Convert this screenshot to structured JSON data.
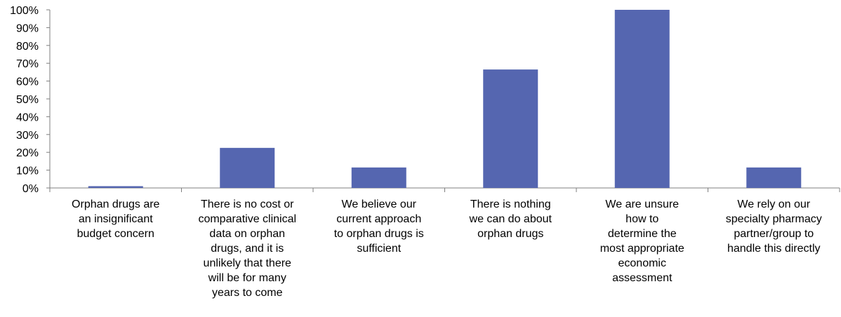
{
  "chart_data": {
    "type": "bar",
    "categories": [
      [
        "Orphan drugs are",
        "an insignificant",
        "budget concern"
      ],
      [
        "There is no cost or",
        "comparative clinical",
        "data on orphan",
        "drugs, and it is",
        "unlikely that there",
        "will be for many",
        "years to come"
      ],
      [
        "We believe our",
        "current approach",
        "to orphan drugs is",
        "sufficient"
      ],
      [
        "There is nothing",
        "we can do about",
        "orphan drugs"
      ],
      [
        "We are unsure",
        "how to",
        "determine the",
        "most appropriate",
        "economic",
        "assessment"
      ],
      [
        "We rely on our",
        "specialty pharmacy",
        "partner/group to",
        "handle this directly"
      ]
    ],
    "values": [
      1,
      22.5,
      11.5,
      66.5,
      100,
      11.5
    ],
    "ylim": [
      0,
      100
    ],
    "yticks": [
      "0%",
      "10%",
      "20%",
      "30%",
      "40%",
      "50%",
      "60%",
      "70%",
      "80%",
      "90%",
      "100%"
    ],
    "bar_color": "#5566b0",
    "grid": false,
    "legend": "none"
  }
}
